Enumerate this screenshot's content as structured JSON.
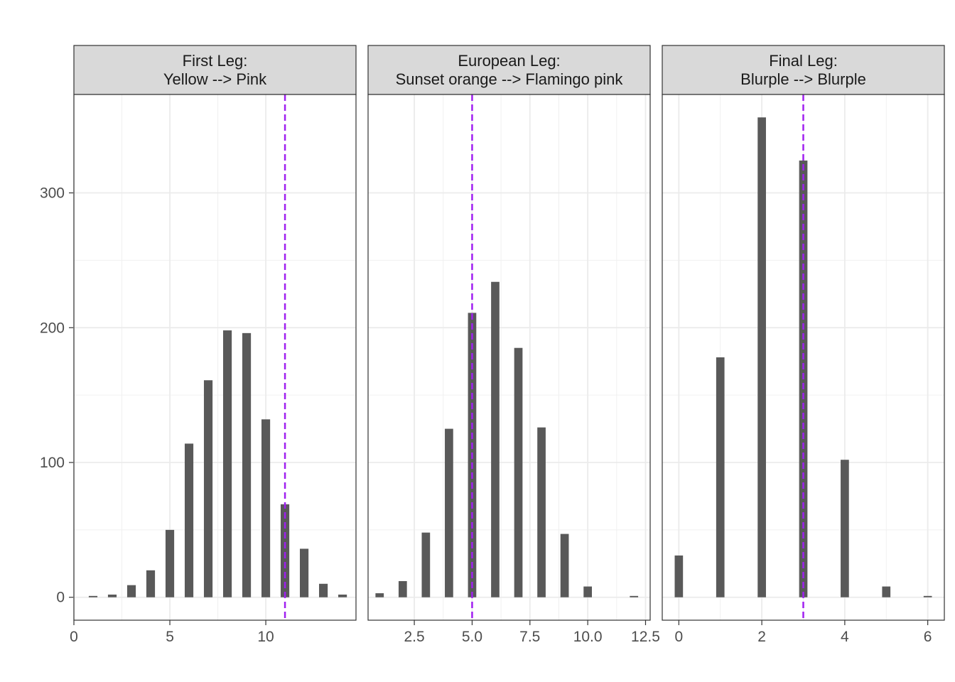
{
  "chart_data": {
    "type": "bar",
    "facet_layout": "1x3",
    "grid": true,
    "ylim": [
      -17,
      373
    ],
    "y_ticks": [
      0,
      100,
      200,
      300
    ],
    "y_tick_labels": [
      "0",
      "100",
      "200",
      "300"
    ],
    "reference_line_color": "#a020f0",
    "bar_color": "#595959",
    "panels": [
      {
        "title_lines": [
          "First Leg:",
          "Yellow --> Pink"
        ],
        "xlim": [
          0,
          14.7
        ],
        "x_ticks": [
          0,
          5,
          10
        ],
        "x_tick_labels": [
          "0",
          "5",
          "10"
        ],
        "bar_width": 0.45,
        "reference_x": 11,
        "x": [
          1,
          2,
          3,
          4,
          5,
          6,
          7,
          8,
          9,
          10,
          11,
          12,
          13,
          14
        ],
        "values": [
          1,
          2,
          9,
          20,
          50,
          114,
          161,
          198,
          196,
          132,
          69,
          36,
          10,
          2
        ]
      },
      {
        "title_lines": [
          "European Leg:",
          "Sunset orange --> Flamingo pink"
        ],
        "xlim": [
          0.5,
          12.7
        ],
        "x_ticks": [
          2.5,
          5.0,
          7.5,
          10.0,
          12.5
        ],
        "x_tick_labels": [
          "2.5",
          "5.0",
          "7.5",
          "10.0",
          "12.5"
        ],
        "bar_width": 0.36,
        "reference_x": 5,
        "x": [
          1,
          2,
          3,
          4,
          5,
          6,
          7,
          8,
          9,
          10,
          12
        ],
        "values": [
          3,
          12,
          48,
          125,
          211,
          234,
          185,
          126,
          47,
          8,
          1
        ]
      },
      {
        "title_lines": [
          "Final Leg:",
          "Blurple --> Blurple"
        ],
        "xlim": [
          -0.4,
          6.4
        ],
        "x_ticks": [
          0,
          2,
          4,
          6
        ],
        "x_tick_labels": [
          "0",
          "2",
          "4",
          "6"
        ],
        "bar_width": 0.2,
        "reference_x": 3,
        "x": [
          0,
          1,
          2,
          3,
          4,
          5,
          6
        ],
        "values": [
          31,
          178,
          356,
          324,
          102,
          8,
          1
        ]
      }
    ]
  }
}
